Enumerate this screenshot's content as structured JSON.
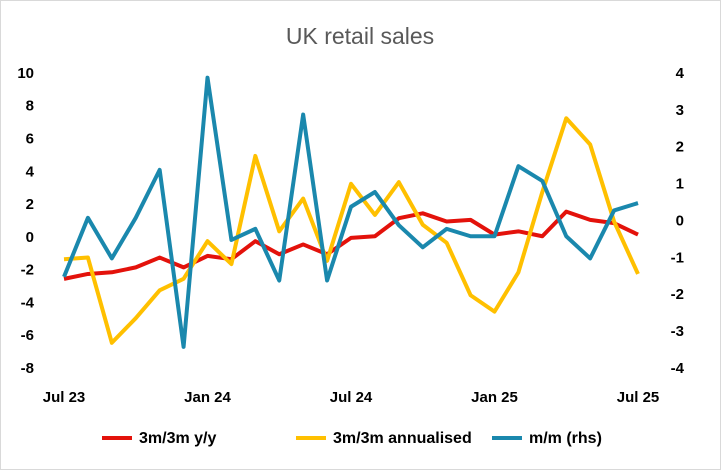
{
  "chart_data": {
    "type": "line",
    "title": "UK retail sales",
    "categories": [
      "Jul 23",
      null,
      null,
      null,
      null,
      null,
      "Jan 24",
      null,
      null,
      null,
      null,
      null,
      "Jul 24",
      null,
      null,
      null,
      null,
      null,
      "Jan 25",
      null,
      null,
      null,
      null,
      null,
      "Jul 25"
    ],
    "series": [
      {
        "name": "3m/3m y/y",
        "color": "#e3120b",
        "values": [
          -2.5,
          -2.2,
          -2.1,
          -1.8,
          -1.2,
          -1.8,
          -1.1,
          -1.3,
          -0.2,
          -1.0,
          -0.4,
          -1.0,
          0.0,
          0.1,
          1.2,
          1.5,
          1.0,
          1.1,
          0.2,
          0.4,
          0.1,
          1.6,
          1.1,
          0.9,
          0.2
        ]
      },
      {
        "name": "3m/3m annualised",
        "color": "#ffc000",
        "values": [
          -1.3,
          -1.2,
          -6.4,
          -4.9,
          -3.2,
          -2.5,
          -0.2,
          -1.6,
          5.0,
          0.4,
          2.4,
          -1.4,
          3.3,
          1.4,
          3.4,
          0.8,
          -0.3,
          -3.5,
          -4.5,
          -2.1,
          2.8,
          7.3,
          5.7,
          1.0,
          -2.2
        ]
      },
      {
        "name": "m/m (rhs)",
        "color": "#1a88ad",
        "axis": "y2",
        "values": [
          -1.5,
          0.1,
          -1.0,
          0.1,
          1.4,
          -3.4,
          3.9,
          -0.5,
          -0.2,
          -1.6,
          2.9,
          -1.6,
          0.4,
          0.8,
          -0.1,
          -0.7,
          -0.2,
          -0.4,
          -0.4,
          1.5,
          1.1,
          -0.4,
          -1.0,
          0.3,
          0.5
        ]
      }
    ],
    "ylim": [
      -8,
      10
    ],
    "yticks": [
      -8,
      -6,
      -4,
      -2,
      0,
      2,
      4,
      6,
      8,
      10
    ],
    "y2lim": [
      -4,
      4
    ],
    "y2ticks": [
      -4,
      -3,
      -2,
      -1,
      0,
      1,
      2,
      3,
      4
    ],
    "grid": false,
    "legend": "bottom"
  }
}
